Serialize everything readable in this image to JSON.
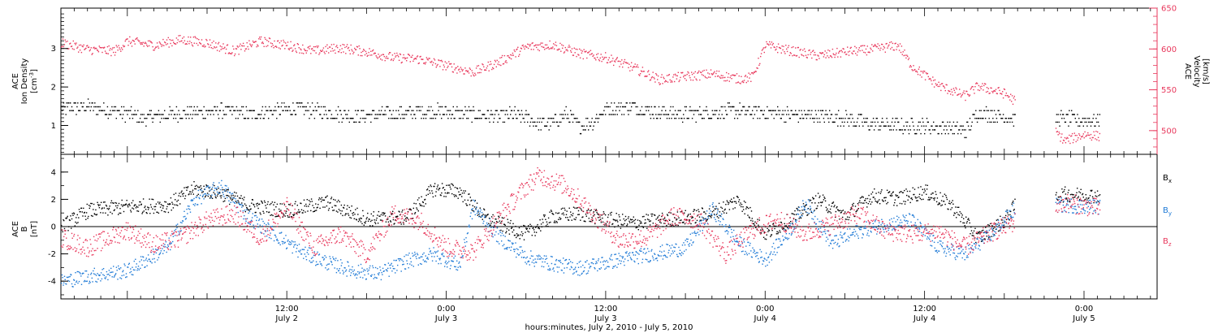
{
  "chart_data": {
    "type": "scatter",
    "title": "",
    "xlabel": "hours:minutes, July  2, 2010 - July  5, 2010",
    "x_ticks": [
      {
        "hour": 12,
        "time": "12:00",
        "date": "July 2"
      },
      {
        "hour": 24,
        "time": "0:00",
        "date": "July 3"
      },
      {
        "hour": 36,
        "time": "12:00",
        "date": "July 3"
      },
      {
        "hour": 48,
        "time": "0:00",
        "date": "July 4"
      },
      {
        "hour": 60,
        "time": "12:00",
        "date": "July 4"
      },
      {
        "hour": 72,
        "time": "0:00",
        "date": "July 5"
      }
    ],
    "xlim_hours_from_july2_0000": [
      -5,
      77.5
    ],
    "colors": {
      "black": "#000000",
      "red": "#e8385c",
      "blue": "#1f7ad6"
    },
    "panels": [
      {
        "name": "plasma",
        "ylabel_lines": [
          "ACE",
          "Ion Density"
        ],
        "ylabel_unit": "[cm",
        "ylabel_unit_sup": "-3",
        "ylabel_unit_end": "]",
        "y_ticks": [
          "1",
          "2",
          "3"
        ],
        "ylim": [
          0.25,
          4.05
        ],
        "right_axis": {
          "label_lines": [
            "ACE",
            "Velocity",
            "[km/s]"
          ],
          "ticks": [
            "500",
            "550",
            "600",
            "650"
          ],
          "ylim": [
            471,
            650
          ],
          "color": "#e8385c"
        },
        "series": [
          {
            "label": "ion density",
            "axis": "left",
            "color": "#000000",
            "knots": [
              [
                -5,
                1.45
              ],
              [
                -3,
                1.5
              ],
              [
                -1,
                1.4
              ],
              [
                1,
                1.2
              ],
              [
                3,
                1.3
              ],
              [
                5,
                1.35
              ],
              [
                7,
                1.4
              ],
              [
                9,
                1.3
              ],
              [
                11,
                1.4
              ],
              [
                13,
                1.45
              ],
              [
                15,
                1.35
              ],
              [
                17,
                1.25
              ],
              [
                19,
                1.3
              ],
              [
                21,
                1.35
              ],
              [
                23,
                1.4
              ],
              [
                24,
                1.35
              ],
              [
                26,
                1.3
              ],
              [
                28,
                1.25
              ],
              [
                29,
                1.3
              ],
              [
                30,
                1.2
              ],
              [
                31,
                1.05
              ],
              [
                32,
                1.1
              ],
              [
                33,
                1.3
              ],
              [
                34,
                1.0
              ],
              [
                35,
                1.1
              ],
              [
                36,
                1.45
              ],
              [
                38,
                1.5
              ],
              [
                40,
                1.35
              ],
              [
                42,
                1.3
              ],
              [
                44,
                1.35
              ],
              [
                46,
                1.4
              ],
              [
                48,
                1.35
              ],
              [
                50,
                1.3
              ],
              [
                52,
                1.25
              ],
              [
                54,
                1.2
              ],
              [
                56,
                1.05
              ],
              [
                58,
                1.0
              ],
              [
                60,
                1.0
              ],
              [
                62,
                0.95
              ],
              [
                63,
                0.85
              ],
              [
                64,
                1.35
              ],
              [
                65,
                1.3
              ],
              [
                66,
                1.25
              ],
              [
                67,
                1.15
              ],
              [
                70.5,
                1.2
              ],
              [
                71.5,
                1.15
              ],
              [
                72.5,
                1.15
              ]
            ],
            "jitter": 0.18
          },
          {
            "label": "velocity",
            "axis": "right",
            "color": "#e8385c",
            "knots": [
              [
                -5,
                608
              ],
              [
                -3,
                600
              ],
              [
                -1,
                598
              ],
              [
                0,
                610
              ],
              [
                2,
                605
              ],
              [
                4,
                612
              ],
              [
                6,
                608
              ],
              [
                8,
                598
              ],
              [
                10,
                610
              ],
              [
                12,
                605
              ],
              [
                14,
                598
              ],
              [
                16,
                602
              ],
              [
                18,
                597
              ],
              [
                20,
                590
              ],
              [
                22,
                588
              ],
              [
                24,
                580
              ],
              [
                26,
                572
              ],
              [
                28,
                585
              ],
              [
                30,
                603
              ],
              [
                32,
                606
              ],
              [
                34,
                595
              ],
              [
                36,
                590
              ],
              [
                38,
                578
              ],
              [
                40,
                563
              ],
              [
                42,
                567
              ],
              [
                44,
                570
              ],
              [
                46,
                564
              ],
              [
                47,
                566
              ],
              [
                48,
                605
              ],
              [
                50,
                598
              ],
              [
                52,
                592
              ],
              [
                54,
                597
              ],
              [
                56,
                600
              ],
              [
                58,
                605
              ],
              [
                59,
                580
              ],
              [
                61,
                556
              ],
              [
                63,
                543
              ],
              [
                64,
                555
              ],
              [
                66,
                546
              ],
              [
                68,
                522
              ],
              [
                69,
                514
              ],
              [
                70.5,
                488
              ],
              [
                72,
                496
              ],
              [
                73,
                494
              ]
            ],
            "jitter": 6
          }
        ]
      },
      {
        "name": "magnetic",
        "ylabel_lines": [
          "ACE",
          "B"
        ],
        "ylabel_unit": "[nT]",
        "y_ticks": [
          "-4",
          "-2",
          "0",
          "2",
          "4"
        ],
        "ylim": [
          -5.3,
          5.3
        ],
        "series": [
          {
            "label": "B",
            "sub": "x",
            "color": "#000000",
            "knots": [
              [
                -5,
                0
              ],
              [
                -3,
                1.2
              ],
              [
                0,
                1.5
              ],
              [
                3,
                1.6
              ],
              [
                5,
                2.8
              ],
              [
                7,
                2.5
              ],
              [
                9,
                1.6
              ],
              [
                12,
                1.2
              ],
              [
                15,
                1.8
              ],
              [
                18,
                0.6
              ],
              [
                21,
                0.7
              ],
              [
                23,
                2.8
              ],
              [
                25,
                2.6
              ],
              [
                27,
                0.6
              ],
              [
                30,
                -0.5
              ],
              [
                32,
                0.8
              ],
              [
                34,
                1.0
              ],
              [
                36,
                0.6
              ],
              [
                38,
                0.3
              ],
              [
                42,
                0.7
              ],
              [
                44,
                1.0
              ],
              [
                46,
                2.0
              ],
              [
                48,
                -0.5
              ],
              [
                50,
                0.6
              ],
              [
                52,
                2.0
              ],
              [
                54,
                0.8
              ],
              [
                56,
                2.3
              ],
              [
                58,
                2.1
              ],
              [
                60,
                2.6
              ],
              [
                62,
                1.6
              ],
              [
                64,
                -0.8
              ],
              [
                66,
                0.5
              ],
              [
                67,
                1.9
              ],
              [
                70.5,
                2.4
              ],
              [
                73,
                2.3
              ]
            ],
            "jitter": 0.55
          },
          {
            "label": "B",
            "sub": "y",
            "color": "#1f7ad6",
            "knots": [
              [
                -5,
                -4.0
              ],
              [
                -3,
                -3.6
              ],
              [
                0,
                -3.2
              ],
              [
                3,
                -1.5
              ],
              [
                5,
                2.0
              ],
              [
                7,
                3.0
              ],
              [
                9,
                0.8
              ],
              [
                11,
                -0.5
              ],
              [
                13,
                -1.8
              ],
              [
                15,
                -2.6
              ],
              [
                17,
                -3.2
              ],
              [
                19,
                -3.4
              ],
              [
                21,
                -2.5
              ],
              [
                23,
                -2.0
              ],
              [
                25,
                -2.8
              ],
              [
                26,
                1.5
              ],
              [
                28,
                -0.8
              ],
              [
                30,
                -2.2
              ],
              [
                32,
                -2.7
              ],
              [
                34,
                -3.0
              ],
              [
                36,
                -2.6
              ],
              [
                38,
                -2.2
              ],
              [
                40,
                -1.9
              ],
              [
                42,
                -1.5
              ],
              [
                44,
                1.3
              ],
              [
                46,
                -1.2
              ],
              [
                48,
                -2.4
              ],
              [
                50,
                0.0
              ],
              [
                51,
                1.8
              ],
              [
                53,
                -1.2
              ],
              [
                55,
                -0.3
              ],
              [
                57,
                0.2
              ],
              [
                59,
                0.5
              ],
              [
                61,
                -1.5
              ],
              [
                63,
                -2.0
              ],
              [
                65,
                -0.5
              ],
              [
                67,
                1.6
              ],
              [
                70.5,
                1.6
              ],
              [
                73,
                1.5
              ]
            ],
            "jitter": 0.55
          },
          {
            "label": "B",
            "sub": "z",
            "color": "#e8385c",
            "knots": [
              [
                -5,
                -0.8
              ],
              [
                -3,
                -1.5
              ],
              [
                0,
                -0.2
              ],
              [
                2,
                -1.3
              ],
              [
                4,
                -0.8
              ],
              [
                6,
                0.5
              ],
              [
                8,
                1.0
              ],
              [
                10,
                -0.8
              ],
              [
                12,
                1.5
              ],
              [
                14,
                -1.5
              ],
              [
                16,
                -0.5
              ],
              [
                18,
                -2.0
              ],
              [
                20,
                1.0
              ],
              [
                22,
                0.5
              ],
              [
                24,
                -1.5
              ],
              [
                26,
                -1.8
              ],
              [
                28,
                0.8
              ],
              [
                30,
                3.0
              ],
              [
                31,
                3.8
              ],
              [
                33,
                3.0
              ],
              [
                35,
                1.0
              ],
              [
                37,
                -1.0
              ],
              [
                39,
                -0.8
              ],
              [
                41,
                0.8
              ],
              [
                43,
                0.5
              ],
              [
                45,
                -2.0
              ],
              [
                47,
                -0.2
              ],
              [
                49,
                0.6
              ],
              [
                51,
                -0.5
              ],
              [
                53,
                0.2
              ],
              [
                55,
                1.0
              ],
              [
                57,
                -0.3
              ],
              [
                59,
                -0.5
              ],
              [
                61,
                -0.3
              ],
              [
                63,
                -1.5
              ],
              [
                65,
                -0.4
              ],
              [
                67,
                0.5
              ],
              [
                70.5,
                1.8
              ],
              [
                73,
                1.4
              ]
            ],
            "jitter": 0.7
          }
        ],
        "legend": [
          {
            "label": "B",
            "sub": "x",
            "color": "#000000"
          },
          {
            "label": "B",
            "sub": "y",
            "color": "#1f7ad6"
          },
          {
            "label": "B",
            "sub": "z",
            "color": "#e8385c"
          }
        ]
      }
    ]
  }
}
